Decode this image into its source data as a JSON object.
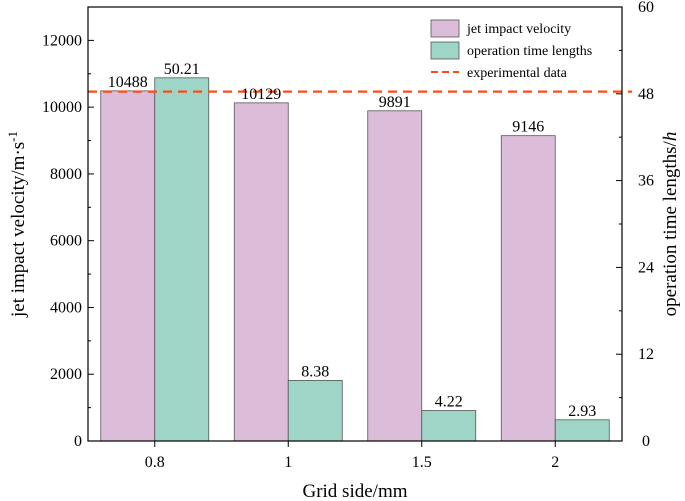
{
  "chart_data": {
    "type": "bar",
    "categories": [
      "0.8",
      "1",
      "1.5",
      "2"
    ],
    "series": [
      {
        "name": "jet impact velocity",
        "axis": "left",
        "color": "#dbbcd9",
        "values": [
          10488,
          10129,
          9891,
          9146
        ],
        "labels": [
          "10488",
          "10129",
          "9891",
          "9146"
        ]
      },
      {
        "name": "operation time lengths",
        "axis": "right",
        "color": "#9fd5c6",
        "values": [
          50.21,
          8.38,
          4.22,
          2.93
        ],
        "labels": [
          "50.21",
          "8.38",
          "4.22",
          "2.93"
        ]
      }
    ],
    "reference_line": {
      "name": "experimental data",
      "axis": "right",
      "value": 48.3,
      "color": "#ff4a17",
      "style": "dashed"
    },
    "xlabel": "Grid side/mm",
    "ylabel_left": {
      "main": "jet impact velocity/m·s",
      "superscript": "-1"
    },
    "ylabel_right": {
      "main": "operation time lengths/",
      "italic": "h"
    },
    "ylim_left": [
      0,
      13000
    ],
    "ylim_right": [
      0,
      60
    ],
    "yticks_left": [
      "0",
      "2000",
      "4000",
      "6000",
      "8000",
      "10000",
      "12000"
    ],
    "yticks_right": [
      "0",
      "12",
      "24",
      "36",
      "48",
      "60"
    ],
    "legend_position": "top-right",
    "grid": false
  }
}
